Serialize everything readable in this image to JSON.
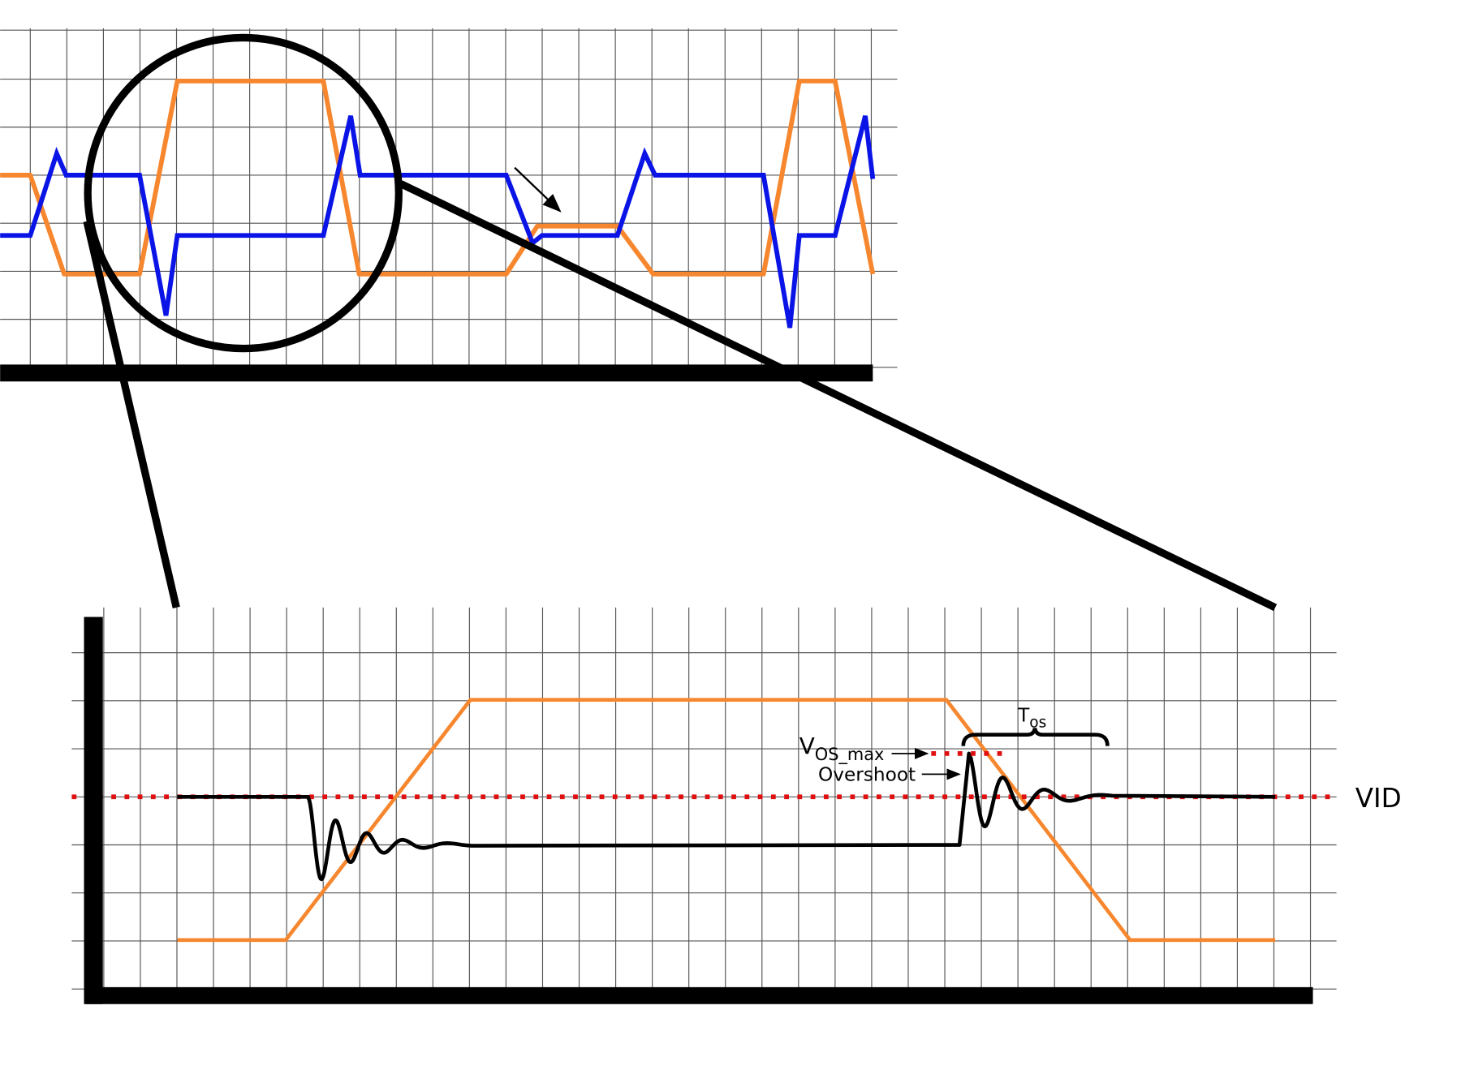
{
  "labels": {
    "vid": "VID",
    "vos_max": {
      "main": "V",
      "sub": "OS_max"
    },
    "overshoot": "Overshoot",
    "tos": {
      "main": "T",
      "sub": "os"
    }
  }
}
